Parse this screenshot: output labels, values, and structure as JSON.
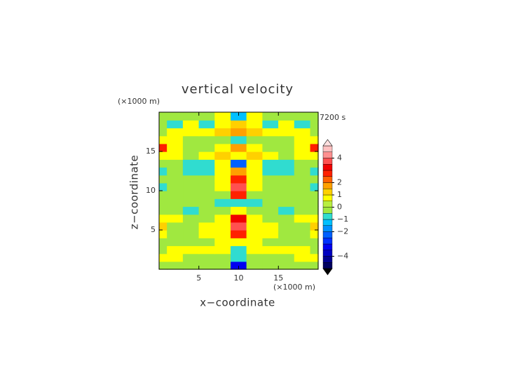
{
  "chart_data": {
    "type": "contour",
    "title": "vertical velocity",
    "x_unit_label": "(×1000 m)",
    "y_unit_label": "(×1000 m)",
    "time_label": "7200 s",
    "xlabel": "x−coordinate",
    "ylabel": "z−coordinate",
    "xlim": [
      0,
      20
    ],
    "ylim": [
      0,
      20
    ],
    "xticks": [
      5,
      10,
      15
    ],
    "yticks": [
      5,
      10,
      15
    ],
    "x": [
      0,
      2,
      4,
      6,
      8,
      10,
      12,
      14,
      16,
      18,
      20
    ],
    "y": [
      0.5,
      1.5,
      2.5,
      3.5,
      4.5,
      5.5,
      6.5,
      7.5,
      8.5,
      9.5,
      10.5,
      11.5,
      12.5,
      13.5,
      14.5,
      15.5,
      16.5,
      17.5,
      18.5,
      19.5
    ],
    "z": [
      [
        -0.2,
        -0.2,
        -0.2,
        -0.2,
        -0.5,
        -3.5,
        -0.5,
        -0.2,
        -0.2,
        -0.2,
        -0.2
      ],
      [
        0.6,
        0.6,
        -0.2,
        -0.2,
        -0.2,
        -1,
        -0.2,
        -0.2,
        -0.2,
        0.6,
        0.6
      ],
      [
        -0.2,
        0.6,
        0.6,
        0.6,
        0.6,
        -0.8,
        0.6,
        0.6,
        0.6,
        0.6,
        -0.2
      ],
      [
        -0.2,
        -0.2,
        -0.2,
        -0.2,
        0.6,
        0.8,
        0.6,
        -0.2,
        -0.2,
        -0.2,
        -0.2
      ],
      [
        0.6,
        -0.2,
        -0.2,
        0.6,
        0.6,
        2.5,
        0.6,
        0.6,
        -0.2,
        -0.2,
        0.6
      ],
      [
        1.2,
        -0.2,
        -0.2,
        0.6,
        0.6,
        3.5,
        0.6,
        0.6,
        -0.2,
        -0.2,
        1.2
      ],
      [
        0.8,
        0.6,
        -0.2,
        -0.2,
        0.6,
        3,
        0.6,
        -0.2,
        -0.2,
        0.6,
        0.8
      ],
      [
        -0.2,
        -0.2,
        -0.8,
        -0.2,
        -0.2,
        0.6,
        -0.2,
        -0.2,
        -0.8,
        -0.2,
        -0.2
      ],
      [
        -0.2,
        -0.2,
        -0.2,
        -0.2,
        -0.8,
        -0.8,
        -0.8,
        -0.2,
        -0.2,
        -0.2,
        -0.2
      ],
      [
        -0.2,
        -0.2,
        -0.2,
        -0.2,
        -0.2,
        2.5,
        -0.2,
        -0.2,
        -0.2,
        -0.2,
        -0.2
      ],
      [
        -0.8,
        -0.2,
        -0.2,
        -0.2,
        0.6,
        3.5,
        0.6,
        -0.2,
        -0.2,
        -0.2,
        -0.8
      ],
      [
        -0.2,
        -0.2,
        -0.2,
        -0.2,
        0.6,
        2.5,
        0.6,
        -0.2,
        -0.2,
        -0.2,
        -0.2
      ],
      [
        -0.8,
        -0.2,
        -0.8,
        -0.8,
        0.6,
        1.5,
        0.6,
        -0.8,
        -0.8,
        -0.2,
        -0.8
      ],
      [
        -0.2,
        -0.2,
        -0.8,
        -0.8,
        0.6,
        -2.5,
        0.6,
        -0.8,
        -0.8,
        -0.2,
        -0.2
      ],
      [
        0.6,
        0.6,
        -0.2,
        0.6,
        1.2,
        0.6,
        1.2,
        0.6,
        -0.2,
        0.6,
        0.6
      ],
      [
        2.5,
        0.6,
        -0.2,
        -0.2,
        0.6,
        1.5,
        0.6,
        -0.2,
        -0.2,
        0.6,
        2.5
      ],
      [
        0.8,
        0.6,
        -0.2,
        -0.2,
        -0.2,
        -0.8,
        -0.2,
        -0.2,
        -0.2,
        0.6,
        0.8
      ],
      [
        -0.2,
        0.6,
        0.6,
        0.6,
        1.2,
        1.5,
        1.2,
        0.6,
        0.6,
        0.6,
        -0.2
      ],
      [
        -0.2,
        -0.8,
        0.6,
        -0.8,
        0.6,
        1.2,
        0.6,
        -0.8,
        0.6,
        -0.8,
        -0.2
      ],
      [
        -0.2,
        -0.2,
        -0.2,
        -0.2,
        0.6,
        -1.5,
        0.6,
        -0.2,
        -0.2,
        -0.2,
        -0.2
      ]
    ],
    "levels": [
      -5,
      -4.5,
      -4,
      -3.5,
      -3,
      -2.5,
      -2,
      -1.5,
      -1,
      -0.5,
      0,
      0.5,
      1,
      1.5,
      2,
      2.5,
      3,
      3.5,
      4,
      4.5,
      5
    ],
    "colors": [
      "#000060",
      "#000090",
      "#0000c0",
      "#0000f0",
      "#0030ff",
      "#0060ff",
      "#0090ff",
      "#00c0ff",
      "#30dcd0",
      "#a0e840",
      "#b8ee40",
      "#ffff00",
      "#ffd000",
      "#ffa000",
      "#ff6000",
      "#ff2000",
      "#f00000",
      "#ff5050",
      "#ff9090",
      "#ffc0c0"
    ],
    "extend_colors": [
      "#000000",
      "#ffe0e0"
    ],
    "colorbar_ticks": [
      {
        "value": -4,
        "label": "−4"
      },
      {
        "value": -2,
        "label": "−2"
      },
      {
        "value": -1,
        "label": "−1"
      },
      0,
      1,
      2,
      4
    ]
  }
}
